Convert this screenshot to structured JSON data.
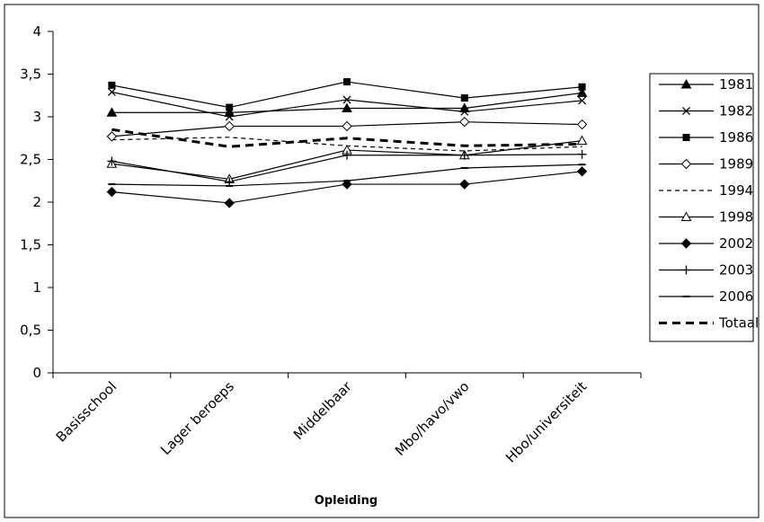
{
  "chart_data": {
    "type": "line",
    "title": "",
    "xlabel": "Opleiding",
    "ylabel": "",
    "categories": [
      "Basisschool",
      "Lager beroeps",
      "Middelbaar",
      "Mbo/havo/vwo",
      "Hbo/universiteit"
    ],
    "y_ticks": [
      "0",
      "0,5",
      "1",
      "1,5",
      "2",
      "2,5",
      "3",
      "3,5",
      "4"
    ],
    "ylim": [
      0,
      4
    ],
    "grid": false,
    "legend_position": "right",
    "series": [
      {
        "name": "1981",
        "marker": "triangle-filled",
        "dash": "solid",
        "values": [
          3.05,
          3.05,
          3.1,
          3.1,
          3.28
        ]
      },
      {
        "name": "1982",
        "marker": "x",
        "dash": "solid",
        "values": [
          3.29,
          3.0,
          3.2,
          3.06,
          3.19
        ]
      },
      {
        "name": "1986",
        "marker": "square-filled",
        "dash": "solid",
        "values": [
          3.37,
          3.11,
          3.41,
          3.22,
          3.35
        ]
      },
      {
        "name": "1989",
        "marker": "diamond-open",
        "dash": "solid",
        "values": [
          2.77,
          2.89,
          2.89,
          2.94,
          2.91
        ]
      },
      {
        "name": "1994",
        "marker": "none",
        "dash": "dashed",
        "values": [
          2.73,
          2.76,
          2.66,
          2.6,
          2.65
        ]
      },
      {
        "name": "1998",
        "marker": "triangle-open",
        "dash": "solid",
        "values": [
          2.45,
          2.27,
          2.61,
          2.55,
          2.72
        ]
      },
      {
        "name": "2002",
        "marker": "diamond-filled",
        "dash": "solid",
        "values": [
          2.12,
          1.99,
          2.21,
          2.21,
          2.36
        ]
      },
      {
        "name": "2003",
        "marker": "plus",
        "dash": "solid",
        "values": [
          2.48,
          2.24,
          2.55,
          2.55,
          2.56
        ]
      },
      {
        "name": "2006",
        "marker": "dash",
        "dash": "solid",
        "values": [
          2.21,
          2.19,
          2.25,
          2.4,
          2.44
        ]
      },
      {
        "name": "Totaal",
        "marker": "none",
        "dash": "bold-dashed",
        "values": [
          2.85,
          2.65,
          2.75,
          2.66,
          2.68
        ]
      }
    ]
  }
}
